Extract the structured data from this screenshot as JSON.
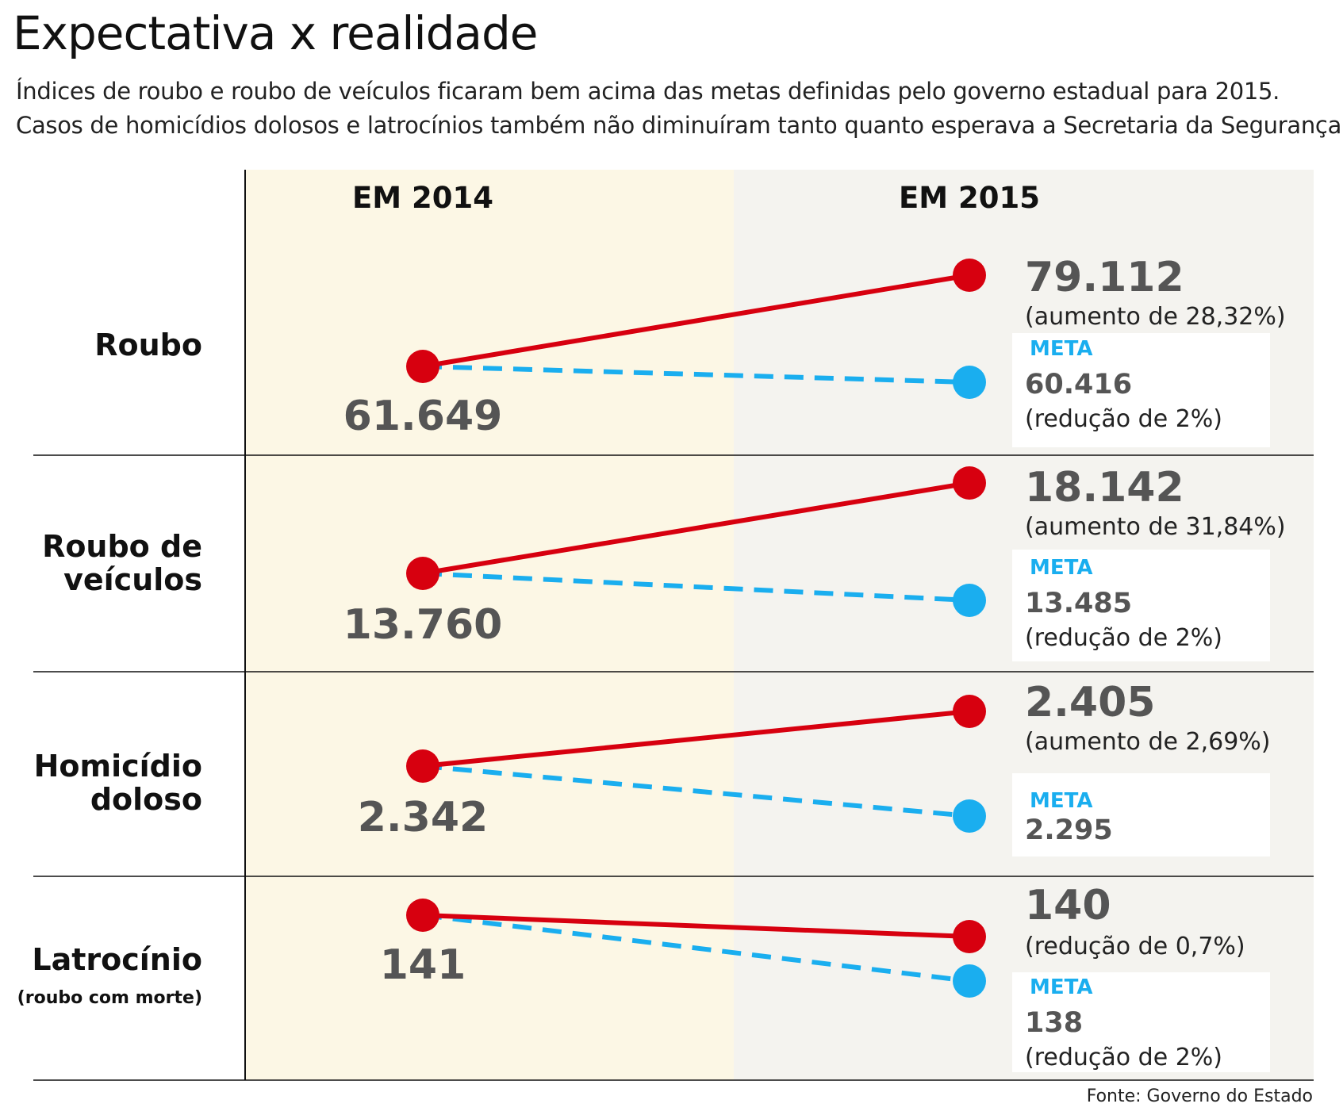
{
  "title": "Expectativa x realidade",
  "subtitle_lines": [
    "Índices de roubo e roubo de veículos ficaram bem acima das metas definidas pelo governo estadual para 2015.",
    "Casos de homicídios dolosos e latrocínios também não diminuíram tanto quanto esperava a Secretaria da Segurança."
  ],
  "source": "Fonte: Governo do Estado",
  "colors": {
    "actual": "#d7000f",
    "target": "#1aaeef",
    "col2014_bg": "#fcf7e5",
    "col2015_bg": "#f4f3ef",
    "value_text": "#555555"
  },
  "chart_data": {
    "type": "slope",
    "columns": [
      "EM 2014",
      "EM 2015"
    ],
    "meta_label": "META",
    "series": [
      {
        "name": "",
        "style": "solid",
        "color": "#d7000f"
      },
      {
        "name": "META",
        "style": "dashed",
        "color": "#1aaeef"
      }
    ],
    "rows": [
      {
        "label_lines": [
          "Roubo"
        ],
        "note": "",
        "v2014": 61649,
        "v2014_text": "61.649",
        "v2015": 79112,
        "v2015_text": "79.112",
        "change_text": "(aumento de 28,32%)",
        "target": 60416,
        "target_text": "60.416",
        "target_change_text": "(redução de 2%)"
      },
      {
        "label_lines": [
          "Roubo de",
          "veículos"
        ],
        "note": "",
        "v2014": 13760,
        "v2014_text": "13.760",
        "v2015": 18142,
        "v2015_text": "18.142",
        "change_text": "(aumento de 31,84%)",
        "target": 13485,
        "target_text": "13.485",
        "target_change_text": "(redução de 2%)"
      },
      {
        "label_lines": [
          "Homicídio",
          "doloso"
        ],
        "note": "",
        "v2014": 2342,
        "v2014_text": "2.342",
        "v2015": 2405,
        "v2015_text": "2.405",
        "change_text": "(aumento de 2,69%)",
        "target": 2295,
        "target_text": "2.295",
        "target_change_text": ""
      },
      {
        "label_lines": [
          "Latrocínio"
        ],
        "note": "(roubo com morte)",
        "v2014": 141,
        "v2014_text": "141",
        "v2015": 140,
        "v2015_text": "140",
        "change_text": "(redução de 0,7%)",
        "target": 138,
        "target_text": "138",
        "target_change_text": "(redução de 2%)"
      }
    ]
  }
}
